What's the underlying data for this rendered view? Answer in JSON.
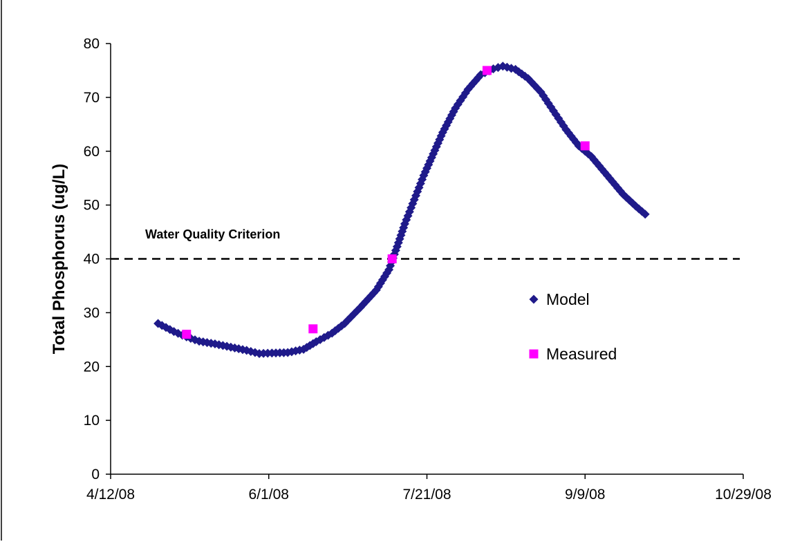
{
  "chart_data": {
    "type": "scatter",
    "title": "",
    "xlabel": "",
    "ylabel": "Total Phosphorus (ug/L)",
    "x_ticks": [
      "4/12/08",
      "6/1/08",
      "7/21/08",
      "9/9/08",
      "10/29/08"
    ],
    "y_ticks": [
      "0",
      "10",
      "20",
      "30",
      "40",
      "50",
      "60",
      "70",
      "80"
    ],
    "xlim": [
      "4/12/08",
      "10/29/08"
    ],
    "ylim": [
      0,
      80
    ],
    "grid": false,
    "legend_position": "right",
    "reference_line": {
      "label": "Water Quality Criterion",
      "y": 40,
      "style": "dashed"
    },
    "series": [
      {
        "name": "Model",
        "marker": "diamond",
        "color": "#1F1A8A",
        "points": [
          [
            "4/27/08",
            28
          ],
          [
            "5/2/08",
            26.5
          ],
          [
            "5/6/08",
            25.5
          ],
          [
            "5/10/08",
            24.7
          ],
          [
            "5/15/08",
            24.2
          ],
          [
            "5/20/08",
            23.6
          ],
          [
            "5/25/08",
            23.0
          ],
          [
            "5/29/08",
            22.4
          ],
          [
            "6/2/08",
            22.5
          ],
          [
            "6/7/08",
            22.6
          ],
          [
            "6/12/08",
            23.2
          ],
          [
            "6/16/08",
            24.6
          ],
          [
            "6/21/08",
            26.2
          ],
          [
            "6/25/08",
            28.0
          ],
          [
            "6/30/08",
            31.0
          ],
          [
            "7/5/08",
            34.2
          ],
          [
            "7/9/08",
            38.0
          ],
          [
            "7/12/08",
            43.0
          ],
          [
            "7/14/08",
            46.5
          ],
          [
            "7/17/08",
            51.0
          ],
          [
            "7/20/08",
            55.5
          ],
          [
            "7/23/08",
            59.5
          ],
          [
            "7/26/08",
            63.5
          ],
          [
            "7/30/08",
            68.0
          ],
          [
            "8/3/08",
            71.5
          ],
          [
            "8/7/08",
            74.2
          ],
          [
            "8/11/08",
            75.3
          ],
          [
            "8/14/08",
            75.8
          ],
          [
            "8/18/08",
            75.2
          ],
          [
            "8/22/08",
            73.5
          ],
          [
            "8/26/08",
            71.0
          ],
          [
            "8/30/08",
            67.5
          ],
          [
            "9/3/08",
            64.0
          ],
          [
            "9/7/08",
            61.0
          ],
          [
            "9/11/08",
            59.0
          ],
          [
            "9/16/08",
            55.5
          ],
          [
            "9/21/08",
            52.0
          ],
          [
            "9/25/08",
            49.8
          ],
          [
            "9/28/08",
            48.3
          ]
        ]
      },
      {
        "name": "Measured",
        "marker": "square",
        "color": "#FF00FF",
        "points": [
          [
            "5/6/08",
            26
          ],
          [
            "6/15/08",
            27
          ],
          [
            "7/10/08",
            40
          ],
          [
            "8/9/08",
            75
          ],
          [
            "9/9/08",
            61
          ]
        ]
      }
    ]
  }
}
